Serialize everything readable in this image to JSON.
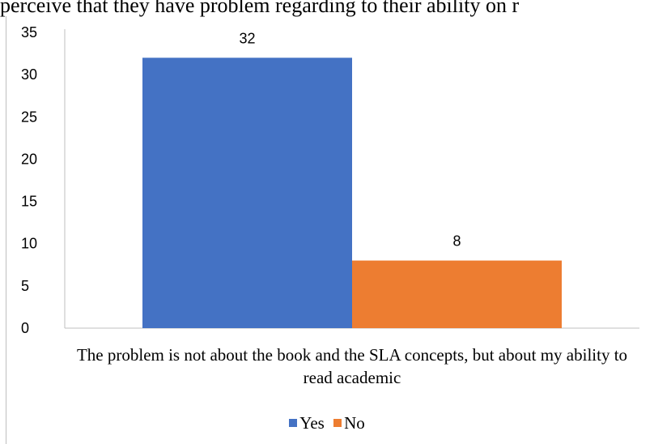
{
  "header": {
    "text": "perceive that they have problem regarding to their ability on r"
  },
  "chart_data": {
    "type": "bar",
    "xlabel": "The problem is not about the book and the SLA concepts, but about my ability to read academic",
    "ylim": [
      0,
      35
    ],
    "yticks": [
      0,
      5,
      10,
      15,
      20,
      25,
      30,
      35
    ],
    "grid": false,
    "legend": "bottom",
    "series": [
      {
        "name": "Yes",
        "values": [
          32
        ],
        "color": "#4472C4"
      },
      {
        "name": "No",
        "values": [
          8
        ],
        "color": "#ED7D31"
      }
    ]
  }
}
